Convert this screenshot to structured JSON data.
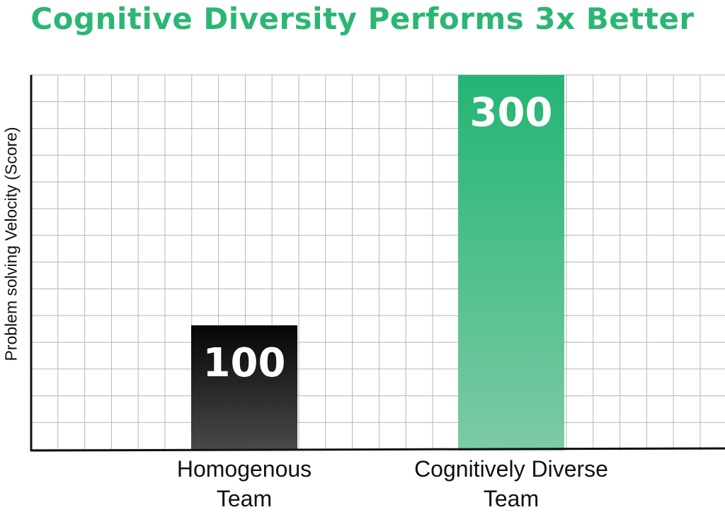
{
  "chart_data": {
    "type": "bar",
    "title": "Cognitive Diversity Performs 3x Better",
    "ylabel": "Problem solving Velocity (Score)",
    "xlabel": "",
    "categories": [
      [
        "Homogenous",
        "Team"
      ],
      [
        "Cognitively Diverse",
        "Team"
      ]
    ],
    "values": [
      100,
      300
    ],
    "data_labels": [
      "100",
      "300"
    ],
    "ylim": [
      0,
      300
    ],
    "grid": true,
    "legend": "none",
    "colors": {
      "title": "#2bb673",
      "bar_1_top": "#050505",
      "bar_1_bottom": "#4a4a4a",
      "bar_2_top": "#24b573",
      "bar_2_bottom": "#7ccaa6",
      "grid": "#b5b5b5",
      "axis": "#111111"
    }
  }
}
